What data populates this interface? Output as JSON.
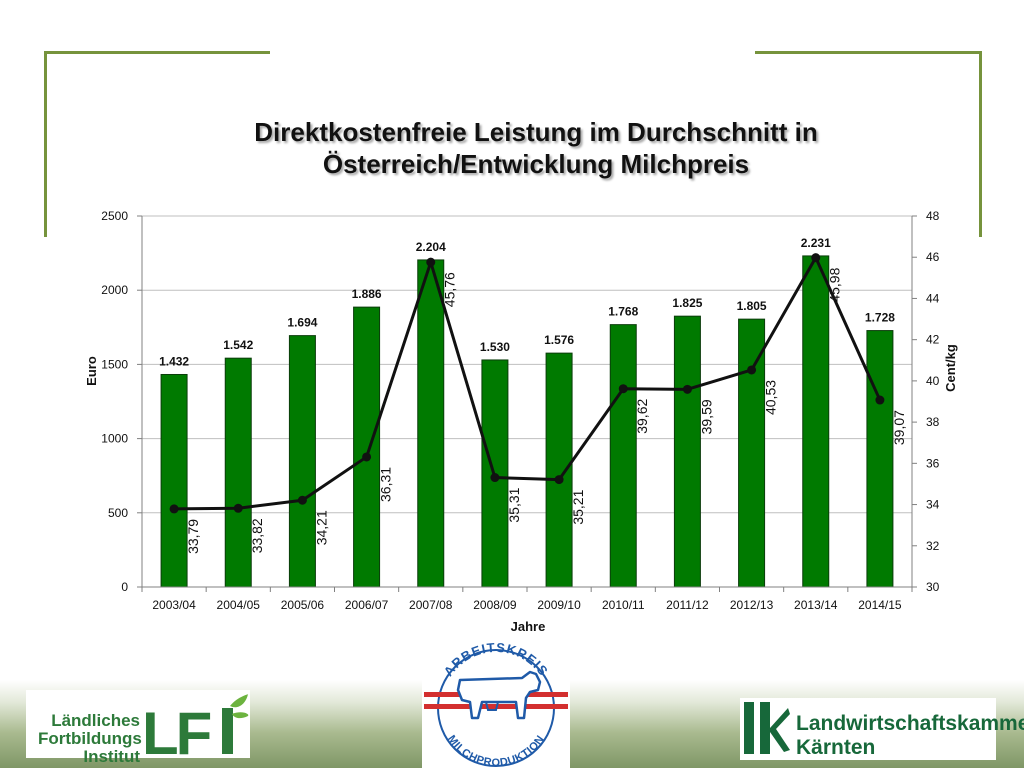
{
  "page": {
    "title_line1": "Direktkostenfreie Leistung im Durchschnitt in",
    "title_line2": "Österreich/Entwicklung Milchpreis"
  },
  "chart_data": {
    "type": "bar",
    "categories": [
      "2003/04",
      "2004/05",
      "2005/06",
      "2006/07",
      "2007/08",
      "2008/09",
      "2009/10",
      "2010/11",
      "2011/12",
      "2012/13",
      "2013/14",
      "2014/15"
    ],
    "series": [
      {
        "type": "bar",
        "axis": "left",
        "color": "#007a00",
        "values": [
          1432,
          1542,
          1694,
          1886,
          2204,
          1530,
          1576,
          1768,
          1825,
          1805,
          2231,
          1728
        ],
        "labels": [
          "1.432",
          "1.542",
          "1.694",
          "1.886",
          "2.204",
          "1.530",
          "1.576",
          "1.768",
          "1.825",
          "1.805",
          "2.231",
          "1.728"
        ]
      },
      {
        "type": "line",
        "axis": "right",
        "color": "#111111",
        "values": [
          33.79,
          33.82,
          34.21,
          36.31,
          45.76,
          35.31,
          35.21,
          39.62,
          39.59,
          40.53,
          45.98,
          39.07
        ],
        "labels": [
          "33,79",
          "33,82",
          "34,21",
          "36,31",
          "45,76",
          "35,31",
          "35,21",
          "39,62",
          "39,59",
          "40,53",
          "45,98",
          "39,07"
        ]
      }
    ],
    "xlabel": "Jahre",
    "ylabel": "Euro",
    "ylabel_right": "Cent/kg",
    "ylim": [
      0,
      2500
    ],
    "yticks": [
      0,
      500,
      1000,
      1500,
      2000,
      2500
    ],
    "ylim_right": [
      30,
      48
    ],
    "yticks_right": [
      30,
      32,
      34,
      36,
      38,
      40,
      42,
      44,
      46,
      48
    ],
    "grid": true,
    "plot_background": "#ffffff",
    "grid_color": "#bfbfbf"
  },
  "logos": {
    "lfi": {
      "text_lines": [
        "Ländliches",
        "Fortbildungs",
        "Institut"
      ],
      "mark": "LFI",
      "color": "#2d7a3a"
    },
    "arbeitskreis": {
      "arc_top": "ARBEITSKREIS",
      "arc_bottom": "MILCHPRODUKTION",
      "icon": "cow-icon",
      "color": "#1f5aa8"
    },
    "lk": {
      "mark": "lk",
      "text_lines": [
        "Landwirtschaftskammer",
        "Kärnten"
      ],
      "color": "#17683a"
    }
  },
  "colors": {
    "frame": "#76933c",
    "bar": "#007a00",
    "line": "#111111"
  }
}
